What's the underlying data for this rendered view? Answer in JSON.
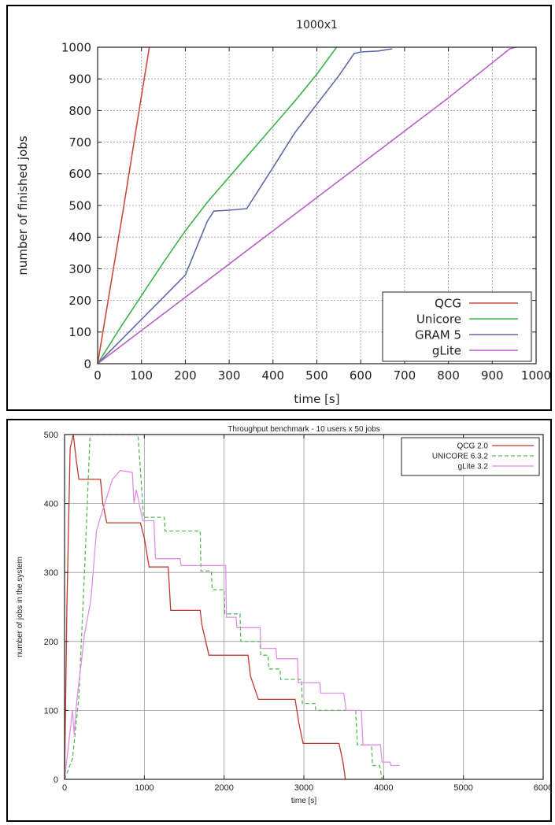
{
  "chart_data": [
    {
      "type": "line",
      "title": "1000x1",
      "xlabel": "time [s]",
      "ylabel": "number of finished jobs",
      "xlim": [
        0,
        1000
      ],
      "ylim": [
        0,
        1000
      ],
      "xticks": [
        "0",
        "100",
        "200",
        "300",
        "400",
        "500",
        "600",
        "700",
        "800",
        "900",
        "1000"
      ],
      "yticks": [
        "0",
        "100",
        "200",
        "300",
        "400",
        "500",
        "600",
        "700",
        "800",
        "900",
        "1000"
      ],
      "grid": true,
      "legend": "bottom-right",
      "series": [
        {
          "name": "QCG",
          "color": "#cc4b3e",
          "points": [
            [
              0,
              0
            ],
            [
              30,
              250
            ],
            [
              60,
              500
            ],
            [
              90,
              760
            ],
            [
              118,
              1000
            ]
          ]
        },
        {
          "name": "Unicore",
          "color": "#3cb34a",
          "points": [
            [
              0,
              0
            ],
            [
              50,
              110
            ],
            [
              100,
              215
            ],
            [
              150,
              320
            ],
            [
              200,
              420
            ],
            [
              250,
              510
            ],
            [
              300,
              590
            ],
            [
              350,
              670
            ],
            [
              400,
              750
            ],
            [
              450,
              830
            ],
            [
              500,
              915
            ],
            [
              545,
              1000
            ]
          ]
        },
        {
          "name": "GRAM 5",
          "color": "#5e6aa8",
          "points": [
            [
              0,
              0
            ],
            [
              50,
              70
            ],
            [
              100,
              140
            ],
            [
              150,
              210
            ],
            [
              200,
              280
            ],
            [
              250,
              450
            ],
            [
              265,
              482
            ],
            [
              300,
              485
            ],
            [
              340,
              490
            ],
            [
              400,
              620
            ],
            [
              450,
              730
            ],
            [
              500,
              820
            ],
            [
              550,
              910
            ],
            [
              585,
              980
            ],
            [
              600,
              985
            ],
            [
              640,
              988
            ],
            [
              672,
              995
            ]
          ]
        },
        {
          "name": "gLite",
          "color": "#b860c8",
          "points": [
            [
              0,
              0
            ],
            [
              200,
              210
            ],
            [
              400,
              420
            ],
            [
              600,
              630
            ],
            [
              800,
              840
            ],
            [
              940,
              995
            ],
            [
              955,
              1000
            ]
          ]
        }
      ]
    },
    {
      "type": "line",
      "title": "Throughput benchmark - 10 users x 50 jobs",
      "xlabel": "time [s]",
      "ylabel": "number of jobs in the system",
      "xlim": [
        0,
        6000
      ],
      "ylim": [
        0,
        500
      ],
      "xticks": [
        "0",
        "1000",
        "2000",
        "3000",
        "4000",
        "5000",
        "6000"
      ],
      "yticks": [
        "0",
        "100",
        "200",
        "300",
        "400",
        "500"
      ],
      "grid": true,
      "legend": "top-right",
      "series": [
        {
          "name": "QCG 2.0",
          "color": "#c0392b",
          "dash": "",
          "points": [
            [
              0,
              0
            ],
            [
              30,
              250
            ],
            [
              70,
              480
            ],
            [
              110,
              500
            ],
            [
              150,
              460
            ],
            [
              180,
              435
            ],
            [
              450,
              435
            ],
            [
              480,
              400
            ],
            [
              530,
              372
            ],
            [
              950,
              372
            ],
            [
              1000,
              350
            ],
            [
              1060,
              308
            ],
            [
              1300,
              308
            ],
            [
              1330,
              245
            ],
            [
              1700,
              245
            ],
            [
              1720,
              225
            ],
            [
              1810,
              180
            ],
            [
              2300,
              180
            ],
            [
              2330,
              150
            ],
            [
              2430,
              116
            ],
            [
              2890,
              116
            ],
            [
              2940,
              80
            ],
            [
              2990,
              52
            ],
            [
              3440,
              52
            ],
            [
              3490,
              25
            ],
            [
              3520,
              0
            ]
          ]
        },
        {
          "name": "UNICORE 6.3.2",
          "color": "#5cb85c",
          "dash": "5,3",
          "points": [
            [
              0,
              0
            ],
            [
              100,
              30
            ],
            [
              180,
              120
            ],
            [
              250,
              300
            ],
            [
              320,
              500
            ],
            [
              920,
              500
            ],
            [
              950,
              450
            ],
            [
              990,
              380
            ],
            [
              1250,
              380
            ],
            [
              1260,
              360
            ],
            [
              1700,
              360
            ],
            [
              1710,
              302
            ],
            [
              1840,
              302
            ],
            [
              1850,
              275
            ],
            [
              2000,
              275
            ],
            [
              2010,
              240
            ],
            [
              2200,
              240
            ],
            [
              2210,
              200
            ],
            [
              2450,
              200
            ],
            [
              2460,
              180
            ],
            [
              2550,
              180
            ],
            [
              2560,
              160
            ],
            [
              2700,
              160
            ],
            [
              2710,
              145
            ],
            [
              2970,
              145
            ],
            [
              2980,
              110
            ],
            [
              3140,
              110
            ],
            [
              3150,
              100
            ],
            [
              3650,
              100
            ],
            [
              3670,
              50
            ],
            [
              3850,
              50
            ],
            [
              3860,
              20
            ],
            [
              3950,
              20
            ],
            [
              3980,
              0
            ]
          ]
        },
        {
          "name": "gLite 3.2",
          "color": "#e08ee8",
          "dash": "",
          "points": [
            [
              0,
              0
            ],
            [
              100,
              100
            ],
            [
              120,
              65
            ],
            [
              150,
              110
            ],
            [
              200,
              160
            ],
            [
              250,
              210
            ],
            [
              330,
              260
            ],
            [
              400,
              360
            ],
            [
              450,
              380
            ],
            [
              600,
              435
            ],
            [
              700,
              448
            ],
            [
              850,
              445
            ],
            [
              870,
              400
            ],
            [
              900,
              420
            ],
            [
              980,
              375
            ],
            [
              1120,
              375
            ],
            [
              1140,
              320
            ],
            [
              1450,
              320
            ],
            [
              1460,
              310
            ],
            [
              2020,
              310
            ],
            [
              2030,
              235
            ],
            [
              2150,
              235
            ],
            [
              2160,
              220
            ],
            [
              2450,
              220
            ],
            [
              2460,
              190
            ],
            [
              2650,
              190
            ],
            [
              2660,
              175
            ],
            [
              2920,
              175
            ],
            [
              2930,
              140
            ],
            [
              3200,
              140
            ],
            [
              3210,
              125
            ],
            [
              3500,
              125
            ],
            [
              3530,
              100
            ],
            [
              3720,
              100
            ],
            [
              3740,
              50
            ],
            [
              3960,
              50
            ],
            [
              3980,
              25
            ],
            [
              4080,
              25
            ],
            [
              4090,
              20
            ],
            [
              4200,
              20
            ]
          ]
        }
      ]
    }
  ]
}
